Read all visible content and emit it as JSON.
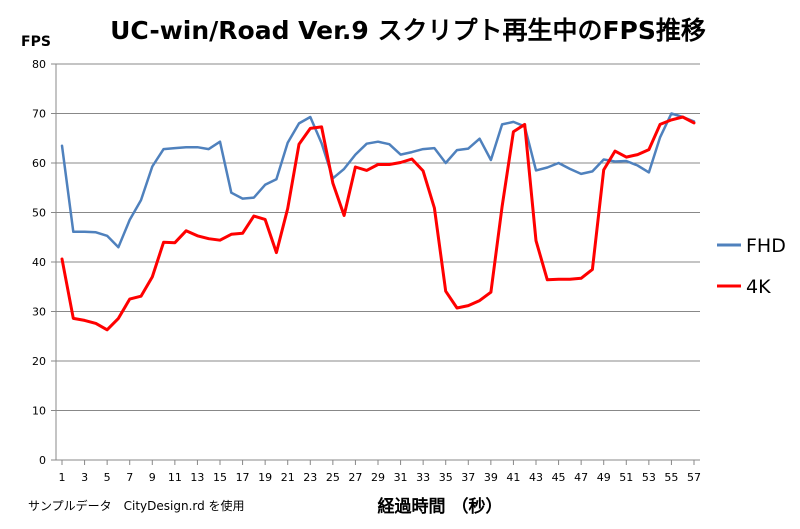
{
  "chart_data": {
    "type": "line",
    "title": "UC-win/Road Ver.9 スクリプト再生中のFPS推移",
    "ylabel": "FPS",
    "xlabel": "経過時間 （秒）",
    "footnote": "サンプルデータ　CityDesign.rd を使用",
    "ylim": [
      0,
      80
    ],
    "yticks": [
      0,
      10,
      20,
      30,
      40,
      50,
      60,
      70,
      80
    ],
    "xlim": [
      1,
      57
    ],
    "xticks": [
      1,
      3,
      5,
      7,
      9,
      11,
      13,
      15,
      17,
      19,
      21,
      23,
      25,
      27,
      29,
      31,
      33,
      35,
      37,
      39,
      41,
      43,
      45,
      47,
      49,
      51,
      53,
      55,
      57
    ],
    "grid": true,
    "legend_position": "right",
    "colors": {
      "FHD": "#4f81bd",
      "4K": "#ff0000",
      "grid": "#888888",
      "axis": "#888888"
    },
    "series": [
      {
        "name": "FHD",
        "color": "#4f81bd",
        "values": [
          63.5,
          46.1,
          46.1,
          46,
          45.3,
          43,
          48.5,
          52.5,
          59.3,
          62.8,
          63,
          63.2,
          63.2,
          62.8,
          64.3,
          54,
          52.8,
          53,
          55.6,
          56.7,
          64.1,
          68,
          69.3,
          64,
          56.9,
          58.8,
          61.7,
          63.9,
          64.3,
          63.8,
          61.7,
          62.2,
          62.8,
          63,
          60,
          62.6,
          62.9,
          64.9,
          60.6,
          67.8,
          68.3,
          67.4,
          58.5,
          59.1,
          60,
          58.8,
          57.8,
          58.3,
          60.7,
          60.3,
          60.4,
          59.5,
          58.1,
          65.2,
          70,
          69.3,
          68.4
        ]
      },
      {
        "name": "4K",
        "color": "#ff0000",
        "values": [
          40.6,
          28.6,
          28.2,
          27.6,
          26.3,
          28.6,
          32.5,
          33.1,
          37,
          44,
          43.9,
          46.3,
          45.3,
          44.7,
          44.4,
          45.6,
          45.8,
          49.3,
          48.6,
          41.9,
          50.8,
          63.8,
          67,
          67.3,
          55.9,
          49.4,
          59.2,
          58.5,
          59.7,
          59.7,
          60.1,
          60.8,
          58.4,
          50.9,
          34.1,
          30.7,
          31.2,
          32.2,
          33.9,
          51.2,
          66.3,
          67.8,
          44.3,
          36.4,
          36.5,
          36.5,
          36.7,
          38.5,
          58.6,
          62.4,
          61.2,
          61.7,
          62.7,
          67.8,
          68.7,
          69.3,
          68.1
        ]
      }
    ]
  }
}
